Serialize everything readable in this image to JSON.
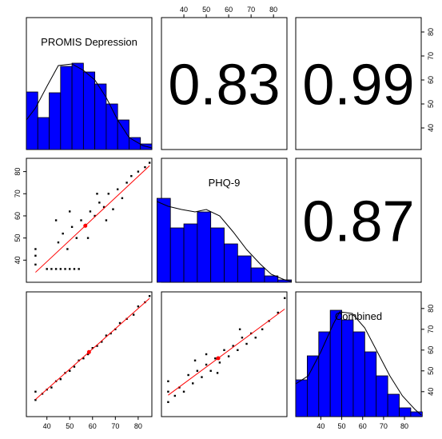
{
  "chart_data": {
    "type": "pairs",
    "variables": [
      {
        "name": "PROMIS Depression",
        "lim": [
          31,
          86
        ]
      },
      {
        "name": "PHQ-9",
        "lim": [
          30,
          86
        ]
      },
      {
        "name": "Combined",
        "lim": [
          28,
          88
        ]
      }
    ],
    "ticks": [
      40,
      50,
      60,
      70,
      80
    ],
    "histograms": [
      {
        "color": "#0000ff",
        "bins": [
          31,
          36,
          41,
          46,
          51,
          56,
          61,
          66,
          71,
          76,
          81,
          86
        ],
        "counts": [
          72,
          40,
          71,
          104,
          108,
          97,
          82,
          57,
          37,
          15,
          7
        ],
        "ylim": [
          0,
          165
        ],
        "density": {
          "x": [
            31,
            35,
            40,
            45,
            51,
            56,
            61,
            66,
            71,
            76,
            82,
            86
          ],
          "values": [
            37,
            52,
            79,
            105,
            107,
            99,
            87,
            65,
            37,
            15,
            5,
            2
          ]
        }
      },
      {
        "color": "#0000ff",
        "bins": [
          28,
          34,
          40,
          46,
          52,
          58,
          64,
          70,
          76,
          82,
          88
        ],
        "counts": [
          105,
          68,
          73,
          88,
          68,
          48,
          33,
          18,
          8,
          3
        ],
        "ylim": [
          0,
          155
        ],
        "density": {
          "x": [
            28,
            33,
            39,
            45,
            50,
            56,
            62,
            68,
            74,
            79,
            85,
            88
          ],
          "values": [
            101,
            95,
            91,
            88,
            91,
            83,
            63,
            41,
            23,
            10,
            3,
            1
          ]
        }
      },
      {
        "color": "#0000ff",
        "bins": [
          28,
          33.5,
          39,
          44.5,
          50,
          55.5,
          61,
          66.5,
          72,
          77.5,
          83,
          88.5
        ],
        "counts": [
          46,
          76,
          106,
          133,
          121,
          106,
          81,
          51,
          28,
          11,
          6
        ],
        "ylim": [
          0,
          156
        ],
        "density": {
          "x": [
            28,
            34,
            40,
            46,
            49,
            55,
            61,
            67,
            73,
            79,
            85,
            88
          ],
          "values": [
            41,
            51,
            81,
            116,
            131,
            129,
            111,
            81,
            51,
            26,
            9,
            2
          ]
        }
      }
    ],
    "correlations": [
      0.83,
      0.99,
      0.87
    ],
    "scatter": [
      {
        "x": [
          35,
          35,
          35,
          40,
          42,
          44,
          46,
          48,
          50,
          52,
          54,
          45,
          47,
          49,
          51,
          53,
          55,
          57,
          59,
          61,
          63,
          65,
          67,
          69,
          71,
          73,
          75,
          77,
          80,
          83,
          85,
          58,
          62,
          66,
          50,
          44
        ],
        "y": [
          38,
          42,
          45,
          36,
          36,
          36,
          36,
          36,
          36,
          36,
          36,
          48,
          52,
          45,
          55,
          50,
          58,
          56,
          62,
          60,
          66,
          64,
          70,
          63,
          72,
          68,
          75,
          78,
          80,
          82,
          84,
          50,
          70,
          58,
          62,
          58
        ]
      },
      {
        "x": [
          35,
          35,
          38,
          40,
          42,
          44,
          46,
          48,
          50,
          52,
          54,
          56,
          58,
          60,
          62,
          64,
          66,
          68,
          70,
          72,
          75,
          78,
          80,
          83,
          85
        ],
        "y": [
          36,
          40,
          39,
          41,
          42,
          45,
          46,
          49,
          50,
          52,
          55,
          56,
          58,
          61,
          62,
          64,
          67,
          68,
          70,
          73,
          75,
          77,
          81,
          83,
          86
        ]
      },
      {
        "x": [
          33,
          33,
          33,
          36,
          38,
          40,
          42,
          44,
          46,
          48,
          50,
          52,
          54,
          56,
          58,
          60,
          62,
          64,
          66,
          68,
          70,
          72,
          75,
          78,
          82,
          85,
          45,
          55,
          65,
          50
        ],
        "y": [
          35,
          40,
          45,
          38,
          42,
          40,
          48,
          44,
          50,
          47,
          53,
          50,
          56,
          54,
          60,
          57,
          62,
          60,
          66,
          63,
          68,
          66,
          70,
          74,
          78,
          85,
          55,
          49,
          70,
          58
        ]
      }
    ],
    "point_color": "#000000",
    "fit_color": "#ff0000"
  }
}
